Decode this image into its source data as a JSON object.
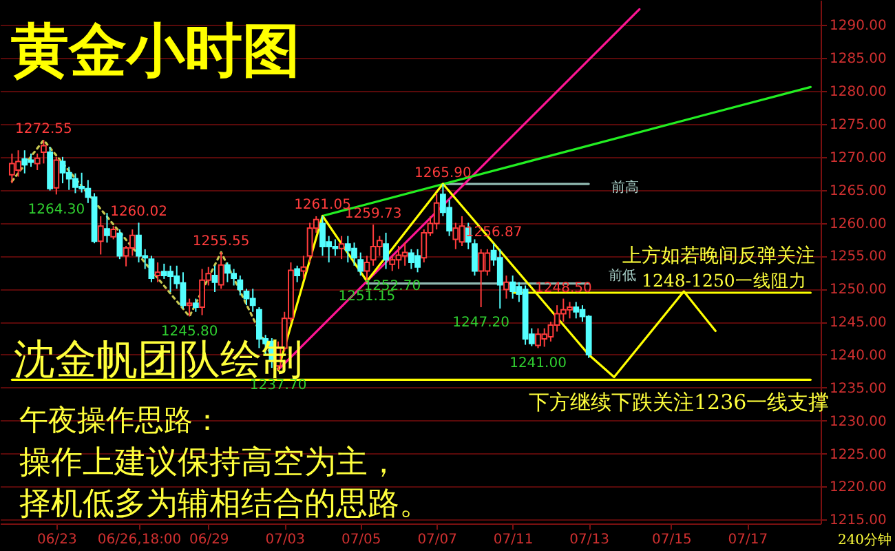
{
  "chart_data": {
    "type": "candlestick",
    "title": "黄金小时图",
    "categories": [
      null,
      null,
      null,
      null,
      null,
      null,
      null,
      "06/23",
      null,
      null,
      null,
      null,
      null,
      null,
      null,
      null,
      null,
      null,
      null,
      null,
      "06/26,18:00",
      null,
      null,
      null,
      null,
      null,
      null,
      null,
      null,
      null,
      null,
      "06/29",
      null,
      null,
      null,
      null,
      null,
      null,
      null,
      null,
      null,
      null,
      null,
      "07/03",
      null,
      null,
      null,
      null,
      null,
      null,
      null,
      null,
      null,
      null,
      null,
      "07/05",
      null,
      null,
      null,
      null,
      null,
      null,
      null,
      null,
      null,
      null,
      null,
      "07/07",
      null,
      null,
      null,
      null,
      null,
      null,
      null,
      null,
      null,
      null,
      null,
      "07/11",
      null,
      null,
      null,
      null,
      null,
      null,
      null,
      null,
      null,
      null,
      null,
      "07/13",
      null,
      null,
      null,
      null,
      null,
      null,
      null,
      null,
      null,
      null,
      null,
      null,
      "07/15",
      null,
      null,
      null,
      null,
      null,
      null,
      null,
      null,
      null,
      null,
      null,
      "07/17",
      null,
      null,
      null,
      null,
      null,
      null,
      null,
      null,
      null,
      null
    ],
    "ohlc": [
      [
        1267.3,
        1270.5,
        1266,
        1269
      ],
      [
        1268,
        1271,
        1267,
        1269.3
      ],
      [
        1269.7,
        1271,
        1267.5,
        1268.8
      ],
      [
        1269.5,
        1270.5,
        1268.5,
        1269.2
      ],
      [
        1269,
        1270.5,
        1268,
        1269.8
      ],
      [
        1270.7,
        1272.55,
        1269,
        1271.7
      ],
      [
        1270.7,
        1271.5,
        1264.9,
        1265.2
      ],
      [
        1265.3,
        1270,
        1264.3,
        1269.5
      ],
      [
        1269.3,
        1270,
        1266,
        1267.6
      ],
      [
        1267.6,
        1268.5,
        1265,
        1266.7
      ],
      [
        1266.7,
        1267.5,
        1264.5,
        1265.4
      ],
      [
        1265.5,
        1267.6,
        1264.6,
        1265.2
      ],
      [
        1265.2,
        1266.5,
        1263,
        1263.9
      ],
      [
        1263.9,
        1264.5,
        1256.9,
        1257.2
      ],
      [
        1257.2,
        1261,
        1255.2,
        1259.5
      ],
      [
        1259.1,
        1261.5,
        1257,
        1258.1
      ],
      [
        1257.9,
        1259.5,
        1257.5,
        1259
      ],
      [
        1258.4,
        1259,
        1254.5,
        1255
      ],
      [
        1255,
        1256.5,
        1253.4,
        1256.2
      ],
      [
        1256.2,
        1259,
        1255,
        1258.1
      ],
      [
        1258.1,
        1260.02,
        1254,
        1255
      ],
      [
        1255,
        1256,
        1253,
        1254.7
      ],
      [
        1254.5,
        1255,
        1251,
        1251.6
      ],
      [
        1252,
        1254,
        1251,
        1252.5
      ],
      [
        1252.6,
        1253.8,
        1251.5,
        1252
      ],
      [
        1252.6,
        1253.5,
        1249.5,
        1251.9
      ],
      [
        1251.9,
        1253.5,
        1250,
        1250.8
      ],
      [
        1250.9,
        1252.5,
        1247,
        1247.5
      ],
      [
        1247.5,
        1248.5,
        1245.8,
        1247.8
      ],
      [
        1247.8,
        1248.5,
        1246.5,
        1247.2
      ],
      [
        1247.2,
        1253,
        1246,
        1251.3
      ],
      [
        1251.3,
        1253.3,
        1250.5,
        1252.3
      ],
      [
        1252,
        1253.5,
        1249.5,
        1251
      ],
      [
        1250.6,
        1255.55,
        1250,
        1253.6
      ],
      [
        1253.6,
        1254,
        1251,
        1252.4
      ],
      [
        1252.3,
        1253,
        1250.5,
        1251.6
      ],
      [
        1251.3,
        1252,
        1249,
        1249.9
      ],
      [
        1249.6,
        1250,
        1247.5,
        1248.5
      ],
      [
        1248.5,
        1250,
        1246.5,
        1247.5
      ],
      [
        1246.8,
        1247.2,
        1241,
        1242.4
      ],
      [
        1242.4,
        1243,
        1240,
        1241.7
      ],
      [
        1242,
        1242.5,
        1238,
        1239.3
      ],
      [
        1238.3,
        1242,
        1237.7,
        1241
      ],
      [
        1241,
        1246.5,
        1240.5,
        1245.5
      ],
      [
        1245.5,
        1254,
        1245,
        1252.8
      ],
      [
        1253,
        1253.5,
        1251,
        1252
      ],
      [
        1252.7,
        1255,
        1251.5,
        1253.3
      ],
      [
        1255,
        1260,
        1254,
        1259.2
      ],
      [
        1259.2,
        1261,
        1258.5,
        1260.5
      ],
      [
        1259.9,
        1261.05,
        1255,
        1256.4
      ],
      [
        1257.1,
        1258,
        1254,
        1256.4
      ],
      [
        1256.4,
        1257.5,
        1255,
        1256.1
      ],
      [
        1256.1,
        1258,
        1254.5,
        1256.8
      ],
      [
        1256.8,
        1258,
        1254,
        1255.8
      ],
      [
        1256.1,
        1257,
        1253.5,
        1254.7
      ],
      [
        1254.4,
        1255.5,
        1252,
        1252.7
      ],
      [
        1252.7,
        1255,
        1251.15,
        1254
      ],
      [
        1254.4,
        1259.73,
        1253.5,
        1256.4
      ],
      [
        1256.4,
        1258,
        1255,
        1257.3
      ],
      [
        1256.8,
        1258.5,
        1253,
        1254.4
      ],
      [
        1253.7,
        1255,
        1252.7,
        1254.4
      ],
      [
        1254.4,
        1256.5,
        1253,
        1255.1
      ],
      [
        1255,
        1257,
        1253.5,
        1255.5
      ],
      [
        1255.4,
        1256,
        1253,
        1254
      ],
      [
        1255,
        1256,
        1252.5,
        1253.3
      ],
      [
        1254.7,
        1259,
        1254,
        1258.5
      ],
      [
        1258.5,
        1261,
        1258,
        1259.9
      ],
      [
        1259.9,
        1264.5,
        1259,
        1263
      ],
      [
        1264.3,
        1265.9,
        1261,
        1261.6
      ],
      [
        1262.3,
        1263.5,
        1258,
        1258.8
      ],
      [
        1257.5,
        1260,
        1256,
        1259.2
      ],
      [
        1257.1,
        1261,
        1256.5,
        1259.5
      ],
      [
        1259.2,
        1260,
        1256,
        1257.1
      ],
      [
        1256.8,
        1257.5,
        1252,
        1252.7
      ],
      [
        1252.7,
        1256,
        1247.2,
        1255.4
      ],
      [
        1252.7,
        1256,
        1252,
        1255.4
      ],
      [
        1255.8,
        1256.87,
        1253.5,
        1254.4
      ],
      [
        1254.7,
        1256,
        1247,
        1250.6
      ],
      [
        1249.9,
        1252,
        1248.5,
        1251
      ],
      [
        1251,
        1252,
        1248.5,
        1249.6
      ],
      [
        1250.3,
        1251,
        1248,
        1249.2
      ],
      [
        1249.9,
        1250.5,
        1241.5,
        1242.4
      ],
      [
        1243.1,
        1244,
        1241.3,
        1241.7
      ],
      [
        1241.4,
        1244,
        1241,
        1243.1
      ],
      [
        1242.4,
        1244,
        1241.2,
        1243.1
      ],
      [
        1242.7,
        1245,
        1242,
        1244.5
      ],
      [
        1244.5,
        1247.5,
        1243.5,
        1246.2
      ],
      [
        1246.2,
        1248.5,
        1245,
        1246.8
      ],
      [
        1246.8,
        1248,
        1245.5,
        1247.2
      ],
      [
        1247.2,
        1248,
        1245.5,
        1246.5
      ],
      [
        1246.8,
        1247.5,
        1245,
        1245.8
      ],
      [
        1245.8,
        1246,
        1239.5,
        1240
      ],
      null,
      null,
      null,
      null,
      null,
      null,
      null,
      null,
      null,
      null,
      null,
      null,
      null,
      null,
      null,
      null,
      null,
      null,
      null,
      null,
      null,
      null,
      null,
      null,
      null,
      null,
      null,
      null,
      null,
      null,
      null,
      null,
      null,
      null,
      null
    ],
    "colors": [
      "#ff3c3c",
      "#ff3c3c",
      "#54ffff",
      "#54ffff",
      "#ff3c3c",
      "#ff3c3c",
      "#54ffff",
      "#ff3c3c",
      "#54ffff",
      "#54ffff",
      "#54ffff",
      "#54ffff",
      "#54ffff",
      "#54ffff",
      "#ff3c3c",
      "#54ffff",
      "#ff3c3c",
      "#54ffff",
      "#ff3c3c",
      "#ff3c3c",
      "#54ffff",
      "#54ffff",
      "#54ffff",
      "#ff3c3c",
      "#54ffff",
      "#54ffff",
      "#54ffff",
      "#54ffff",
      "#ff3c3c",
      "#54ffff",
      "#ff3c3c",
      "#ff3c3c",
      "#54ffff",
      "#ff3c3c",
      "#54ffff",
      "#54ffff",
      "#54ffff",
      "#54ffff",
      "#54ffff",
      "#54ffff",
      "#54ffff",
      "#54ffff",
      "#ff3c3c",
      "#ff3c3c",
      "#ff3c3c",
      "#54ffff",
      "#ff3c3c",
      "#ff3c3c",
      "#ff3c3c",
      "#54ffff",
      "#54ffff",
      "#54ffff",
      "#ff3c3c",
      "#54ffff",
      "#54ffff",
      "#54ffff",
      "#ff3c3c",
      "#ff3c3c",
      "#ff3c3c",
      "#54ffff",
      "#ff3c3c",
      "#ff3c3c",
      "#ff3c3c",
      "#54ffff",
      "#54ffff",
      "#ff3c3c",
      "#ff3c3c",
      "#ff3c3c",
      "#54ffff",
      "#54ffff",
      "#ff3c3c",
      "#ff3c3c",
      "#54ffff",
      "#54ffff",
      "#ff3c3c",
      "#ff3c3c",
      "#54ffff",
      "#54ffff",
      "#ff3c3c",
      "#54ffff",
      "#54ffff",
      "#54ffff",
      "#54ffff",
      "#ff3c3c",
      "#ff3c3c",
      "#ff3c3c",
      "#ff3c3c",
      "#ff3c3c",
      "#ff3c3c",
      "#54ffff",
      "#54ffff",
      "#54ffff",
      null,
      null,
      null,
      null,
      null,
      null,
      null,
      null,
      null,
      null,
      null,
      null,
      null,
      null,
      null,
      null,
      null,
      null,
      null,
      null,
      null,
      null,
      null,
      null,
      null,
      null,
      null,
      null,
      null,
      null,
      null,
      null,
      null,
      null,
      null
    ],
    "series": [
      {
        "type": "line",
        "color": "#c8c850",
        "line_style": "dotted",
        "values": [
          1266.3,
          null,
          null,
          null,
          null,
          1272.55,
          null,
          null,
          null,
          null,
          null,
          null,
          null,
          null,
          null,
          null,
          null,
          null,
          null,
          null,
          null,
          null,
          null,
          null,
          null,
          null,
          null,
          null,
          1245.8,
          null,
          null,
          null,
          null,
          1255.55,
          null,
          null,
          null,
          null,
          null,
          null,
          null,
          null,
          1237.7,
          null,
          null,
          null,
          null,
          null,
          null,
          null,
          null,
          null,
          null,
          null,
          null,
          null,
          null,
          null,
          null,
          null,
          null,
          null,
          null,
          null,
          null,
          null,
          null,
          null,
          null,
          null,
          null,
          null,
          null,
          null,
          null,
          null,
          null,
          null,
          null,
          null,
          null,
          null,
          null,
          null,
          null,
          null,
          null,
          null,
          null,
          null,
          null,
          null,
          null,
          null,
          null,
          null,
          null,
          null,
          null,
          null,
          null,
          null,
          null,
          null,
          null,
          null,
          null,
          null,
          null,
          null,
          null,
          null,
          null,
          null,
          null,
          null,
          null,
          null,
          null,
          null,
          null,
          null,
          null,
          null,
          null,
          null,
          null
        ]
      },
      {
        "type": "line",
        "color": "#8fb8b0",
        "line_style": "solid",
        "values": [
          null,
          null,
          null,
          null,
          null,
          null,
          null,
          null,
          null,
          null,
          null,
          null,
          null,
          null,
          null,
          null,
          null,
          null,
          null,
          null,
          null,
          null,
          null,
          null,
          null,
          null,
          null,
          null,
          null,
          null,
          null,
          null,
          null,
          null,
          null,
          null,
          null,
          null,
          null,
          null,
          null,
          null,
          null,
          null,
          null,
          null,
          null,
          null,
          null,
          null,
          null,
          null,
          null,
          null,
          null,
          null,
          null,
          null,
          null,
          null,
          null,
          null,
          null,
          null,
          null,
          null,
          null,
          null,
          1265.9,
          null,
          null,
          null,
          null,
          null,
          null,
          null,
          null,
          null,
          null,
          null,
          null,
          null,
          null,
          null,
          null,
          null,
          null,
          null,
          null,
          null,
          null,
          1265.9,
          null,
          null,
          null,
          null,
          null,
          null,
          null,
          null,
          null,
          null,
          null,
          null,
          null,
          null,
          null,
          null,
          null,
          null,
          null,
          null,
          null,
          null,
          null,
          null,
          null,
          null,
          null,
          null,
          null,
          null,
          null,
          null,
          null,
          null,
          null
        ]
      },
      {
        "type": "line",
        "color": "#8fb8b0",
        "line_style": "solid",
        "values": [
          null,
          null,
          null,
          null,
          null,
          null,
          null,
          null,
          null,
          null,
          null,
          null,
          null,
          null,
          null,
          null,
          null,
          null,
          null,
          null,
          null,
          null,
          null,
          null,
          null,
          null,
          null,
          null,
          null,
          null,
          null,
          null,
          null,
          null,
          null,
          null,
          null,
          null,
          null,
          null,
          null,
          null,
          null,
          null,
          null,
          null,
          null,
          null,
          null,
          null,
          null,
          null,
          null,
          null,
          null,
          null,
          1250.8,
          null,
          null,
          null,
          null,
          null,
          null,
          null,
          null,
          null,
          null,
          null,
          null,
          null,
          null,
          null,
          null,
          null,
          null,
          null,
          null,
          null,
          null,
          null,
          null,
          null,
          null,
          null,
          null,
          null,
          null,
          null,
          null,
          null,
          null,
          1250.8,
          null,
          null,
          null,
          null,
          null,
          null,
          null,
          null,
          null,
          null,
          null,
          null,
          null,
          null,
          null,
          null,
          null,
          null,
          null,
          null,
          null,
          null,
          null,
          null,
          null,
          null,
          null,
          null,
          null,
          null,
          null,
          null,
          null,
          null,
          null
        ]
      },
      {
        "type": "line",
        "color": "#ffff00",
        "line_style": "solid",
        "values": [
          1236.2,
          null,
          null,
          null,
          null,
          null,
          null,
          null,
          null,
          null,
          null,
          null,
          null,
          null,
          null,
          null,
          null,
          null,
          null,
          null,
          null,
          null,
          null,
          null,
          null,
          null,
          null,
          null,
          null,
          null,
          null,
          null,
          null,
          null,
          null,
          null,
          null,
          null,
          null,
          null,
          null,
          null,
          null,
          null,
          null,
          null,
          null,
          null,
          null,
          null,
          null,
          null,
          null,
          null,
          null,
          null,
          null,
          null,
          null,
          null,
          null,
          null,
          null,
          null,
          null,
          null,
          null,
          null,
          null,
          null,
          null,
          null,
          null,
          null,
          null,
          null,
          null,
          null,
          null,
          null,
          null,
          null,
          null,
          null,
          null,
          null,
          null,
          null,
          null,
          null,
          null,
          null,
          null,
          null,
          null,
          null,
          null,
          null,
          null,
          null,
          null,
          null,
          null,
          null,
          null,
          null,
          null,
          null,
          null,
          null,
          null,
          null,
          null,
          null,
          null,
          null,
          null,
          null,
          null,
          null,
          null,
          null,
          null,
          null,
          null,
          null,
          1236.2
        ]
      },
      {
        "type": "line",
        "color": "#ffff00",
        "line_style": "solid",
        "values": [
          null,
          null,
          null,
          null,
          null,
          null,
          null,
          null,
          null,
          null,
          null,
          null,
          null,
          null,
          null,
          null,
          null,
          null,
          null,
          null,
          null,
          null,
          null,
          null,
          null,
          null,
          null,
          null,
          null,
          null,
          null,
          null,
          null,
          null,
          null,
          null,
          null,
          null,
          null,
          null,
          null,
          null,
          null,
          null,
          null,
          null,
          null,
          null,
          null,
          null,
          null,
          null,
          null,
          null,
          null,
          null,
          null,
          null,
          null,
          null,
          null,
          null,
          null,
          null,
          null,
          null,
          null,
          null,
          null,
          null,
          null,
          null,
          null,
          null,
          null,
          null,
          null,
          null,
          null,
          1249.4,
          null,
          null,
          null,
          null,
          null,
          null,
          null,
          null,
          null,
          null,
          null,
          null,
          null,
          null,
          null,
          null,
          null,
          null,
          null,
          null,
          null,
          null,
          null,
          null,
          null,
          null,
          null,
          null,
          null,
          null,
          null,
          null,
          null,
          null,
          null,
          null,
          null,
          null,
          null,
          null,
          null,
          null,
          null,
          null,
          null,
          null,
          1249.4
        ]
      },
      {
        "type": "line",
        "color": "#ff1493",
        "line_style": "solid",
        "values": [
          null,
          null,
          null,
          null,
          null,
          null,
          null,
          null,
          null,
          null,
          null,
          null,
          null,
          null,
          null,
          null,
          null,
          null,
          null,
          null,
          null,
          null,
          null,
          null,
          null,
          null,
          null,
          null,
          null,
          null,
          null,
          null,
          null,
          null,
          null,
          null,
          null,
          null,
          null,
          null,
          null,
          null,
          1237.7,
          null,
          null,
          null,
          null,
          null,
          null,
          null,
          null,
          null,
          null,
          null,
          null,
          null,
          null,
          null,
          null,
          null,
          null,
          null,
          null,
          null,
          null,
          null,
          null,
          null,
          null,
          null,
          null,
          null,
          null,
          null,
          null,
          null,
          null,
          null,
          null,
          null,
          null,
          null,
          null,
          null,
          null,
          null,
          null,
          null,
          null,
          null,
          null,
          null,
          null,
          null,
          null,
          null,
          null,
          null,
          null,
          1292.4,
          null,
          null,
          null,
          null,
          null,
          null,
          null,
          null,
          null,
          null,
          null,
          null,
          null,
          null,
          null,
          null,
          null,
          null,
          null,
          null,
          null,
          null,
          null,
          null,
          null,
          null,
          null
        ]
      },
      {
        "type": "line",
        "color": "#22ee22",
        "line_style": "solid",
        "values": [
          null,
          null,
          null,
          null,
          null,
          null,
          null,
          null,
          null,
          null,
          null,
          null,
          null,
          null,
          null,
          null,
          null,
          null,
          null,
          null,
          null,
          null,
          null,
          null,
          null,
          null,
          null,
          null,
          null,
          null,
          null,
          null,
          null,
          null,
          null,
          null,
          null,
          null,
          null,
          null,
          null,
          null,
          null,
          null,
          null,
          null,
          null,
          null,
          null,
          1261.05,
          null,
          null,
          null,
          null,
          null,
          null,
          null,
          null,
          null,
          null,
          null,
          null,
          null,
          null,
          null,
          null,
          null,
          null,
          null,
          null,
          null,
          null,
          null,
          null,
          null,
          null,
          null,
          null,
          null,
          null,
          null,
          null,
          null,
          null,
          null,
          null,
          null,
          null,
          null,
          null,
          null,
          null,
          null,
          null,
          null,
          null,
          null,
          null,
          null,
          null,
          null,
          null,
          null,
          null,
          null,
          null,
          null,
          null,
          null,
          null,
          null,
          null,
          null,
          null,
          null,
          null,
          null,
          null,
          null,
          null,
          null,
          null,
          null,
          null,
          null,
          null,
          1280.6
        ]
      },
      {
        "type": "line",
        "color": "#ffff00",
        "line_style": "solid",
        "values": [
          null,
          null,
          null,
          null,
          null,
          null,
          null,
          null,
          null,
          null,
          null,
          null,
          null,
          null,
          null,
          null,
          null,
          null,
          null,
          null,
          null,
          null,
          null,
          null,
          null,
          null,
          null,
          null,
          null,
          null,
          null,
          null,
          null,
          null,
          null,
          null,
          null,
          null,
          null,
          null,
          null,
          null,
          1237.7,
          null,
          null,
          null,
          null,
          null,
          null,
          1261.05,
          null,
          null,
          null,
          null,
          null,
          null,
          1251.15,
          null,
          null,
          null,
          null,
          null,
          null,
          null,
          null,
          null,
          null,
          null,
          1265.9,
          null,
          null,
          null,
          null,
          null,
          null,
          null,
          null,
          null,
          null,
          null,
          null,
          null,
          null,
          null,
          null,
          null,
          null,
          null,
          null,
          null,
          null,
          1240,
          null,
          null,
          null,
          1236.6,
          null,
          null,
          null,
          null,
          null,
          null,
          null,
          null,
          null,
          null,
          1249.6,
          null,
          null,
          null,
          null,
          1243.6,
          null,
          null,
          null,
          null,
          null,
          null,
          null,
          null,
          null,
          null,
          null,
          null,
          null,
          null,
          null
        ]
      }
    ],
    "annotations": [
      {
        "text": "1272.55",
        "y": 1272.55
      },
      {
        "text": "1264.30",
        "y": 1264.3
      },
      {
        "text": "1260.02",
        "y": 1260.02
      },
      {
        "text": "1245.80",
        "y": 1245.8
      },
      {
        "text": "1255.55",
        "y": 1255.55
      },
      {
        "text": "1237.70",
        "y": 1237.7
      },
      {
        "text": "1261.05",
        "y": 1261.05
      },
      {
        "text": "1251.15",
        "y": 1251.15
      },
      {
        "text": "1259.73",
        "y": 1259.73
      },
      {
        "text": "1252.70",
        "y": 1252.7
      },
      {
        "text": "1265.90",
        "y": 1265.9
      },
      {
        "text": "1247.20",
        "y": 1247.2
      },
      {
        "text": "1256.87",
        "y": 1256.87
      },
      {
        "text": "1241.00",
        "y": 1241
      },
      {
        "text": "1248.50",
        "y": 1248.5
      },
      "前高",
      "前低",
      "沈金帆团队绘制",
      "午夜操作思路：",
      "操作上建议保持高空为主，",
      "择机低多为辅相结合的思路。",
      "上方如若晚间反弹关注",
      "1248-1250一线阻力",
      "下方继续下跌关注1236一线支撑",
      "240分钟"
    ],
    "ylim": [
      1214.4,
      1293.8
    ],
    "yticks": [
      {
        "value": 1215,
        "label": "1215.00"
      },
      {
        "value": 1220,
        "label": "1220.00"
      },
      {
        "value": 1225,
        "label": "1225.00"
      },
      {
        "value": 1230,
        "label": "1230.00"
      },
      {
        "value": 1235,
        "label": "1235.00"
      },
      {
        "value": 1240,
        "label": "1240.00"
      },
      {
        "value": 1245,
        "label": "1245.00"
      },
      {
        "value": 1250,
        "label": "1250.00"
      },
      {
        "value": 1255,
        "label": "1255.00"
      },
      {
        "value": 1260,
        "label": "1260.00"
      },
      {
        "value": 1265,
        "label": "1265.00"
      },
      {
        "value": 1270,
        "label": "1270.00"
      },
      {
        "value": 1275,
        "label": "1275.00"
      },
      {
        "value": 1280,
        "label": "1280.00"
      },
      {
        "value": 1285,
        "label": "1285.00"
      },
      {
        "value": 1290,
        "label": "1290.00"
      }
    ],
    "grid": "y"
  }
}
